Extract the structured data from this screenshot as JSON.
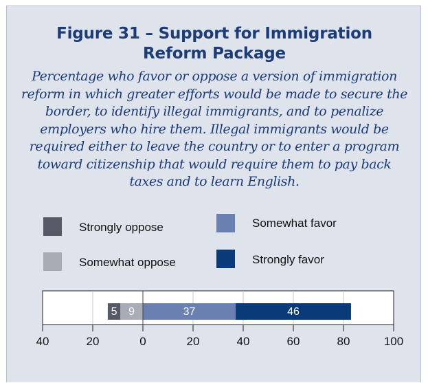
{
  "figure": {
    "title_line1": "Figure 31 – Support for Immigration",
    "title_line2": "Reform Package",
    "subtitle": "Percentage who favor or oppose a version of immigration reform in which greater efforts would be made to secure the border, to identify illegal immigrants, and to penalize employers who hire them. Illegal immigrants would be required either to leave the country or to enter a program toward citizenship that would require them to pay back taxes and to learn English."
  },
  "chart_data": {
    "type": "bar",
    "orientation": "horizontal",
    "stacked": "diverging",
    "title": "Figure 31 – Support for Immigration Reform Package",
    "xlim": [
      -40,
      100
    ],
    "xticks": [
      -40,
      -20,
      0,
      20,
      40,
      60,
      80,
      100
    ],
    "xtick_labels": [
      "40",
      "20",
      "0",
      "20",
      "40",
      "60",
      "80",
      "100"
    ],
    "grid": true,
    "legend_position": "top",
    "series": [
      {
        "name": "Strongly oppose",
        "value": 5,
        "side": "oppose",
        "color": "#555a66"
      },
      {
        "name": "Somewhat oppose",
        "value": 9,
        "side": "oppose",
        "color": "#a9acb4"
      },
      {
        "name": "Somewhat favor",
        "value": 37,
        "side": "favor",
        "color": "#6a80b0"
      },
      {
        "name": "Strongly favor",
        "value": 46,
        "side": "favor",
        "color": "#0b3a78"
      }
    ]
  },
  "colors": {
    "background": "#dfe3ec",
    "title": "#1c3c78"
  }
}
